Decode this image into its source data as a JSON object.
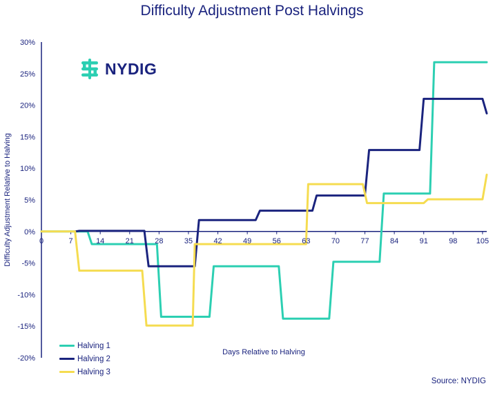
{
  "logo": {
    "text": "NYDIG",
    "icon": "nydig-logo-icon",
    "icon_color": "#2ccfb2"
  },
  "source": "Source: NYDIG",
  "colors": {
    "axis": "#1a237e",
    "halving1": "#2ccfb2",
    "halving2": "#1a237e",
    "halving3": "#f5dc50"
  },
  "chart_data": {
    "type": "line",
    "title": "Difficulty Adjustment Post Halvings",
    "xlabel": "Days Relative to Halving",
    "ylabel": "Difficulty Adjustment Relative to Halving",
    "xlim": [
      0,
      106
    ],
    "ylim": [
      -20,
      30
    ],
    "x_ticks": [
      0,
      7,
      14,
      21,
      28,
      35,
      42,
      49,
      56,
      63,
      70,
      77,
      84,
      91,
      98,
      105
    ],
    "y_ticks": [
      -20,
      -15,
      -10,
      -5,
      0,
      5,
      10,
      15,
      20,
      25,
      30
    ],
    "y_tick_labels": [
      "-20%",
      "-15%",
      "-10%",
      "-5%",
      "0%",
      "5%",
      "10%",
      "15%",
      "20%",
      "25%",
      "30%"
    ],
    "legend_position": "bottom-left",
    "grid": false,
    "series": [
      {
        "name": "Halving 1",
        "color": "#2ccfb2",
        "points": [
          [
            0,
            0
          ],
          [
            11,
            0
          ],
          [
            12,
            -2
          ],
          [
            27.5,
            -2
          ],
          [
            28.5,
            -13.5
          ],
          [
            40,
            -13.5
          ],
          [
            41,
            -5.5
          ],
          [
            56.5,
            -5.5
          ],
          [
            57.5,
            -13.8
          ],
          [
            68.5,
            -13.8
          ],
          [
            69.5,
            -4.8
          ],
          [
            80.5,
            -4.8
          ],
          [
            81.5,
            6
          ],
          [
            92.5,
            6
          ],
          [
            93.5,
            26.8
          ],
          [
            106,
            26.8
          ]
        ]
      },
      {
        "name": "Halving 2",
        "color": "#1a237e",
        "points": [
          [
            8,
            0
          ],
          [
            9,
            0.1
          ],
          [
            24.5,
            0.1
          ],
          [
            25.5,
            -5.5
          ],
          [
            36.5,
            -5.5
          ],
          [
            37.5,
            1.8
          ],
          [
            51,
            1.8
          ],
          [
            52,
            3.3
          ],
          [
            64.5,
            3.3
          ],
          [
            65.5,
            5.7
          ],
          [
            77,
            5.7
          ],
          [
            78,
            12.9
          ],
          [
            90,
            12.9
          ],
          [
            91,
            21
          ],
          [
            105,
            21
          ],
          [
            106,
            18.7
          ]
        ]
      },
      {
        "name": "Halving 3",
        "color": "#f5dc50",
        "points": [
          [
            0,
            0
          ],
          [
            8,
            0
          ],
          [
            9,
            -6.2
          ],
          [
            24,
            -6.2
          ],
          [
            25,
            -14.9
          ],
          [
            36,
            -14.9
          ],
          [
            36.5,
            -2
          ],
          [
            63,
            -2
          ],
          [
            63.5,
            7.5
          ],
          [
            76.5,
            7.5
          ],
          [
            77.5,
            4.5
          ],
          [
            91,
            4.5
          ],
          [
            92,
            5.1
          ],
          [
            105,
            5.1
          ],
          [
            106,
            9
          ]
        ]
      }
    ]
  }
}
